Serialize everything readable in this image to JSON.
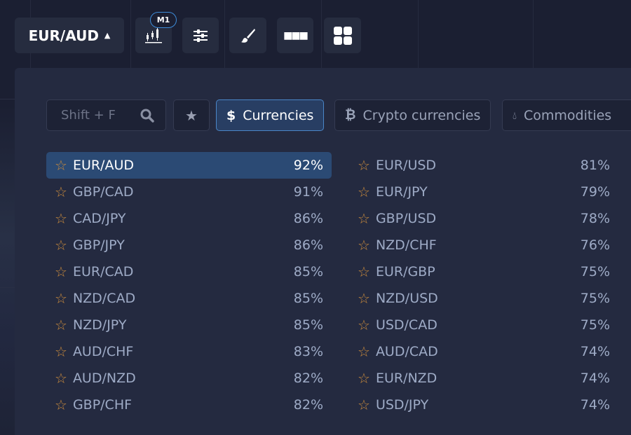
{
  "toolbar": {
    "symbol": "EUR/AUD",
    "timeframe": "M1",
    "icons": [
      "candlestick-chart-icon",
      "sliders-icon",
      "brush-icon",
      "more-dots-icon",
      "grid-layout-icon"
    ]
  },
  "picker": {
    "search_placeholder": "Shift + F",
    "tabs": [
      {
        "label": "Currencies",
        "icon": "dollar-icon",
        "active": true
      },
      {
        "label": "Crypto currencies",
        "icon": "bitcoin-icon"
      },
      {
        "label": "Commodities",
        "icon": "drop-icon"
      }
    ],
    "left": [
      [
        "EUR/AUD",
        "92%"
      ],
      [
        "GBP/CAD",
        "91%"
      ],
      [
        "CAD/JPY",
        "86%"
      ],
      [
        "GBP/JPY",
        "86%"
      ],
      [
        "EUR/CAD",
        "85%"
      ],
      [
        "NZD/CAD",
        "85%"
      ],
      [
        "NZD/JPY",
        "85%"
      ],
      [
        "AUD/CHF",
        "83%"
      ],
      [
        "AUD/NZD",
        "82%"
      ],
      [
        "GBP/CHF",
        "82%"
      ]
    ],
    "right": [
      [
        "EUR/USD",
        "81%"
      ],
      [
        "EUR/JPY",
        "79%"
      ],
      [
        "GBP/USD",
        "78%"
      ],
      [
        "NZD/CHF",
        "76%"
      ],
      [
        "EUR/GBP",
        "75%"
      ],
      [
        "NZD/USD",
        "75%"
      ],
      [
        "USD/CAD",
        "75%"
      ],
      [
        "AUD/CAD",
        "74%"
      ],
      [
        "EUR/NZD",
        "74%"
      ],
      [
        "USD/JPY",
        "74%"
      ]
    ],
    "selected": "EUR/AUD"
  },
  "colors": {
    "accent": "#4a86c8",
    "star": "#c98a3c",
    "selected_row": "#2b4a74"
  }
}
